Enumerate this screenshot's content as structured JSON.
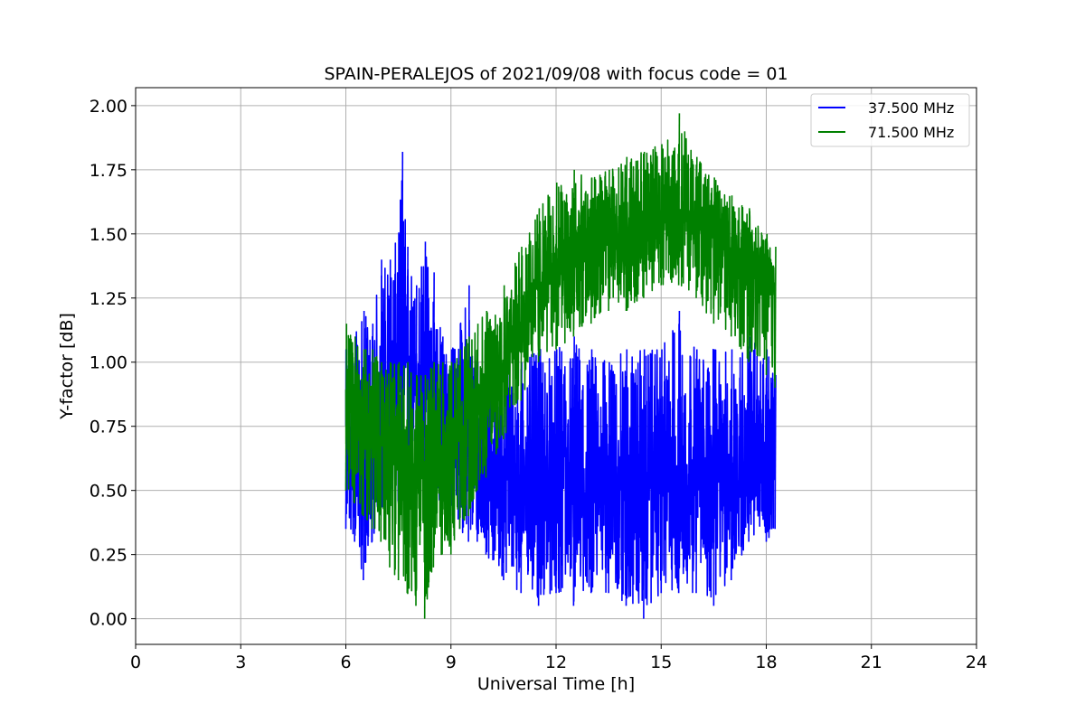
{
  "chart_data": {
    "type": "line",
    "title": "SPAIN-PERALEJOS of 2021/09/08 with focus code = 01",
    "xlabel": "Universal Time [h]",
    "ylabel": "Y-factor [dB]",
    "xlim": [
      0,
      24
    ],
    "ylim": [
      -0.1,
      2.07
    ],
    "xticks": [
      0,
      3,
      6,
      9,
      12,
      15,
      18,
      21,
      24
    ],
    "xtick_labels": [
      "0",
      "3",
      "6",
      "9",
      "12",
      "15",
      "18",
      "21",
      "24"
    ],
    "yticks": [
      0.0,
      0.25,
      0.5,
      0.75,
      1.0,
      1.25,
      1.5,
      1.75,
      2.0
    ],
    "ytick_labels": [
      "0.00",
      "0.25",
      "0.50",
      "0.75",
      "1.00",
      "1.25",
      "1.50",
      "1.75",
      "2.00"
    ],
    "grid": true,
    "legend_position": "top-right",
    "series": [
      {
        "name": "37.500 MHz",
        "color": "#0000ff",
        "x": [
          6.0,
          6.25,
          6.5,
          6.75,
          7.0,
          7.25,
          7.5,
          7.6,
          7.75,
          8.0,
          8.25,
          8.5,
          8.75,
          9.0,
          9.25,
          9.5,
          9.75,
          10.0,
          10.5,
          11.0,
          11.5,
          12.0,
          12.5,
          13.0,
          13.5,
          14.0,
          14.5,
          15.0,
          15.5,
          16.0,
          16.5,
          17.0,
          17.5,
          18.0,
          18.25
        ],
        "y_mean": [
          0.7,
          0.6,
          0.6,
          0.65,
          0.75,
          0.9,
          0.95,
          1.0,
          1.0,
          0.9,
          0.85,
          0.85,
          0.8,
          0.75,
          0.7,
          0.65,
          0.6,
          0.55,
          0.55,
          0.55,
          0.55,
          0.55,
          0.55,
          0.55,
          0.55,
          0.55,
          0.55,
          0.55,
          0.55,
          0.55,
          0.55,
          0.55,
          0.6,
          0.6,
          0.65
        ],
        "y_min": [
          0.35,
          0.3,
          0.15,
          0.3,
          0.4,
          0.5,
          0.45,
          0.5,
          0.5,
          0.5,
          0.45,
          0.45,
          0.4,
          0.4,
          0.35,
          0.3,
          0.3,
          0.25,
          0.15,
          0.1,
          0.05,
          0.1,
          0.05,
          0.1,
          0.1,
          0.05,
          0.0,
          0.1,
          0.1,
          0.1,
          0.05,
          0.15,
          0.3,
          0.3,
          0.35
        ],
        "y_max": [
          1.05,
          1.1,
          1.2,
          1.15,
          1.4,
          1.4,
          1.5,
          1.82,
          1.45,
          1.3,
          1.47,
          1.35,
          1.1,
          1.05,
          1.15,
          1.3,
          1.0,
          1.1,
          1.0,
          1.0,
          1.05,
          1.05,
          1.1,
          1.05,
          1.0,
          1.05,
          1.05,
          1.05,
          1.2,
          1.05,
          1.05,
          1.05,
          1.1,
          1.05,
          0.95
        ]
      },
      {
        "name": "71.500 MHz",
        "color": "#008000",
        "x": [
          6.0,
          6.25,
          6.5,
          6.75,
          7.0,
          7.25,
          7.5,
          7.75,
          8.0,
          8.25,
          8.5,
          8.75,
          9.0,
          9.25,
          9.5,
          9.75,
          10.0,
          10.5,
          11.0,
          11.5,
          12.0,
          12.5,
          13.0,
          13.5,
          14.0,
          14.5,
          15.0,
          15.5,
          16.0,
          16.5,
          17.0,
          17.5,
          18.0,
          18.25
        ],
        "y_mean": [
          0.8,
          0.8,
          0.75,
          0.75,
          0.7,
          0.65,
          0.65,
          0.6,
          0.6,
          0.6,
          0.6,
          0.6,
          0.65,
          0.75,
          0.8,
          0.85,
          0.9,
          1.0,
          1.15,
          1.3,
          1.38,
          1.42,
          1.45,
          1.48,
          1.5,
          1.55,
          1.57,
          1.58,
          1.55,
          1.5,
          1.45,
          1.4,
          1.35,
          1.3
        ],
        "y_min": [
          0.5,
          0.45,
          0.4,
          0.35,
          0.3,
          0.2,
          0.15,
          0.1,
          0.05,
          0.0,
          0.2,
          0.25,
          0.25,
          0.35,
          0.4,
          0.5,
          0.55,
          0.7,
          0.85,
          1.0,
          1.05,
          1.1,
          1.15,
          1.2,
          1.2,
          1.25,
          1.3,
          1.3,
          1.25,
          1.15,
          1.1,
          1.0,
          0.95,
          0.9
        ],
        "y_max": [
          1.15,
          1.1,
          1.05,
          1.05,
          1.0,
          1.0,
          1.0,
          1.0,
          0.95,
          0.95,
          1.0,
          1.0,
          1.0,
          1.05,
          1.1,
          1.15,
          1.2,
          1.3,
          1.45,
          1.6,
          1.7,
          1.75,
          1.72,
          1.75,
          1.8,
          1.82,
          1.85,
          1.97,
          1.8,
          1.72,
          1.65,
          1.6,
          1.5,
          1.45
        ]
      }
    ]
  }
}
